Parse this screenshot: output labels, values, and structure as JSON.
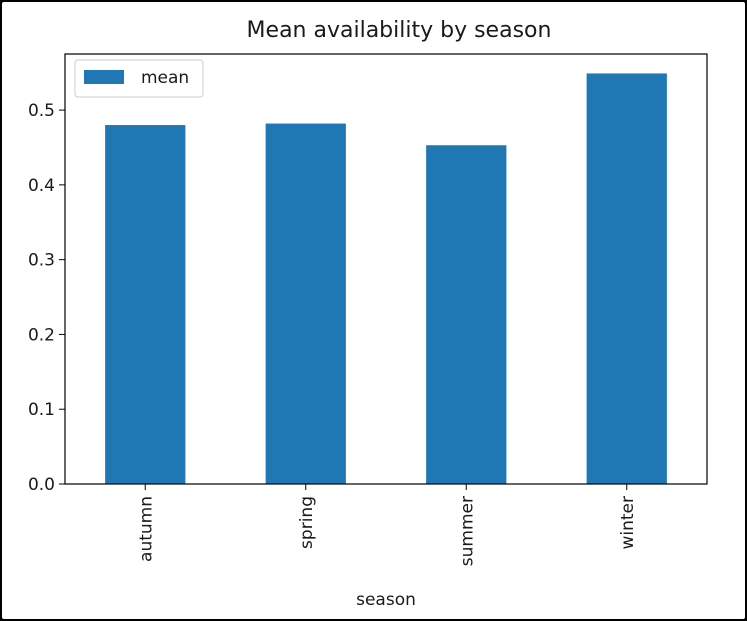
{
  "chart_data": {
    "type": "bar",
    "title": "Mean availability by season",
    "xlabel": "season",
    "ylabel": "",
    "categories": [
      "autumn",
      "spring",
      "summer",
      "winter"
    ],
    "series": [
      {
        "name": "mean",
        "values": [
          0.48,
          0.482,
          0.453,
          0.549
        ],
        "color": "#1f77b4"
      }
    ],
    "ylim": [
      0,
      0.575
    ],
    "yticks": [
      "0.0",
      "0.1",
      "0.2",
      "0.3",
      "0.4",
      "0.5"
    ],
    "grid": false,
    "legend": "top-left",
    "x_tick_rotation": "vertical"
  }
}
